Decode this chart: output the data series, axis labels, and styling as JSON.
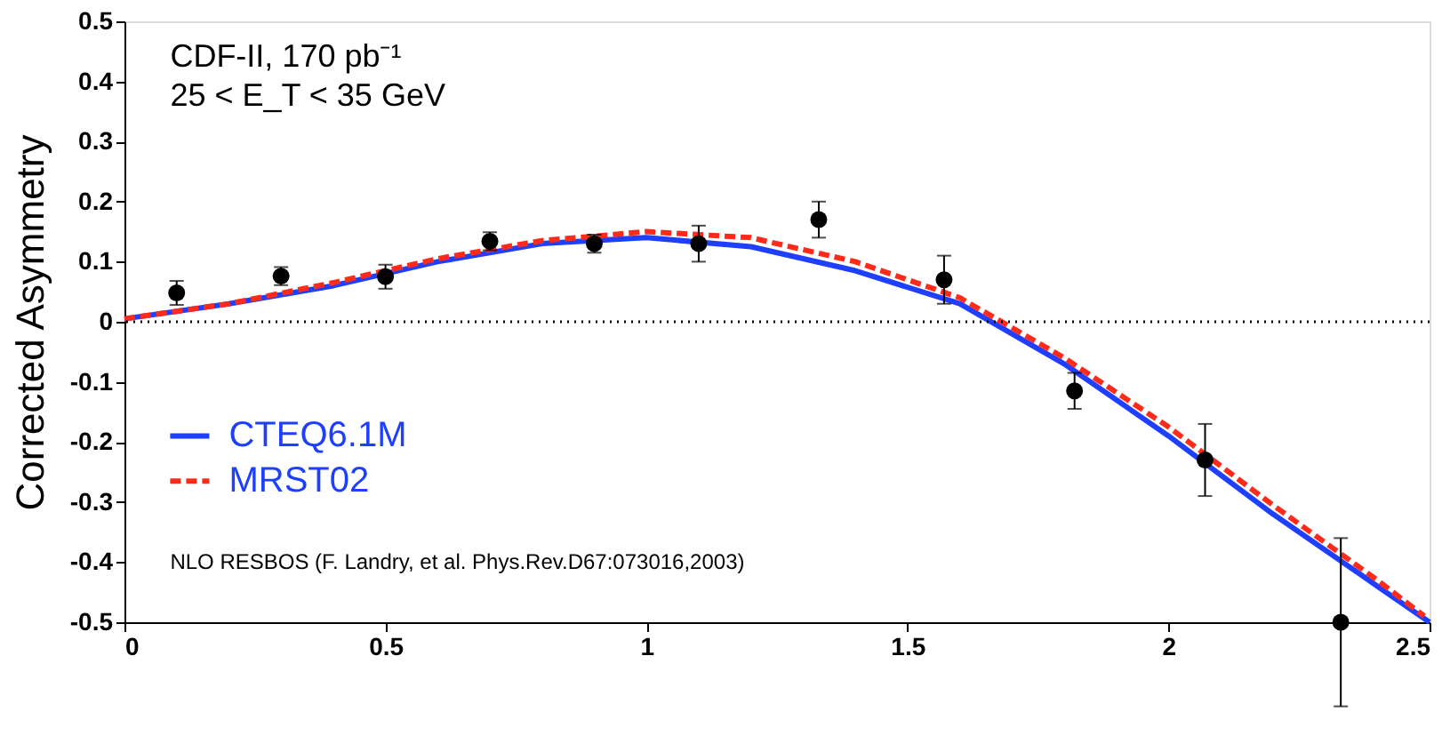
{
  "chart_data": {
    "type": "line",
    "ylabel": "Corrected Asymmetry",
    "xlim": [
      0,
      2.5
    ],
    "ylim": [
      -0.5,
      0.5
    ],
    "xticks": [
      0,
      0.5,
      1,
      1.5,
      2,
      2.5
    ],
    "yticks": [
      -0.5,
      -0.4,
      -0.3,
      -0.2,
      -0.1,
      0,
      0.1,
      0.2,
      0.3,
      0.4,
      0.5
    ],
    "legend": "bottom left",
    "annotations": [
      "CDF-II, 170 pb⁻¹",
      "25 < E_T < 35 GeV",
      "NLO RESBOS (F. Landry, et al. Phys.Rev.D67:073016,2003)"
    ],
    "ref_lines": [
      {
        "axis": "y",
        "value": 0,
        "line_style": "dotted",
        "color": "#000000"
      }
    ],
    "series": [
      {
        "name": "CTEQ6.1M",
        "color": "#1f3fff",
        "line_style": "solid",
        "x": [
          0,
          0.2,
          0.4,
          0.6,
          0.8,
          1.0,
          1.2,
          1.4,
          1.6,
          1.8,
          2.0,
          2.2,
          2.4,
          2.5
        ],
        "values": [
          0.005,
          0.03,
          0.06,
          0.1,
          0.13,
          0.14,
          0.125,
          0.085,
          0.03,
          -0.07,
          -0.19,
          -0.32,
          -0.44,
          -0.5
        ]
      },
      {
        "name": "MRST02",
        "color": "#ff2a1a",
        "line_style": "dashed",
        "x": [
          0,
          0.2,
          0.4,
          0.6,
          0.8,
          1.0,
          1.2,
          1.4,
          1.6,
          1.8,
          2.0,
          2.2,
          2.4,
          2.49
        ],
        "values": [
          0.005,
          0.03,
          0.065,
          0.105,
          0.135,
          0.15,
          0.14,
          0.1,
          0.04,
          -0.06,
          -0.175,
          -0.305,
          -0.43,
          -0.49
        ]
      },
      {
        "type": "scatter",
        "color": "#000000",
        "marker": "circle",
        "x": [
          0.1,
          0.3,
          0.5,
          0.7,
          0.9,
          1.1,
          1.33,
          1.57,
          1.82,
          2.07,
          2.33
        ],
        "values": [
          0.048,
          0.076,
          0.075,
          0.134,
          0.13,
          0.13,
          0.17,
          0.07,
          -0.115,
          -0.23,
          -0.5
        ],
        "errors": [
          0.02,
          0.015,
          0.02,
          0.015,
          0.015,
          0.03,
          0.03,
          0.04,
          0.03,
          0.06,
          0.14
        ]
      }
    ]
  }
}
